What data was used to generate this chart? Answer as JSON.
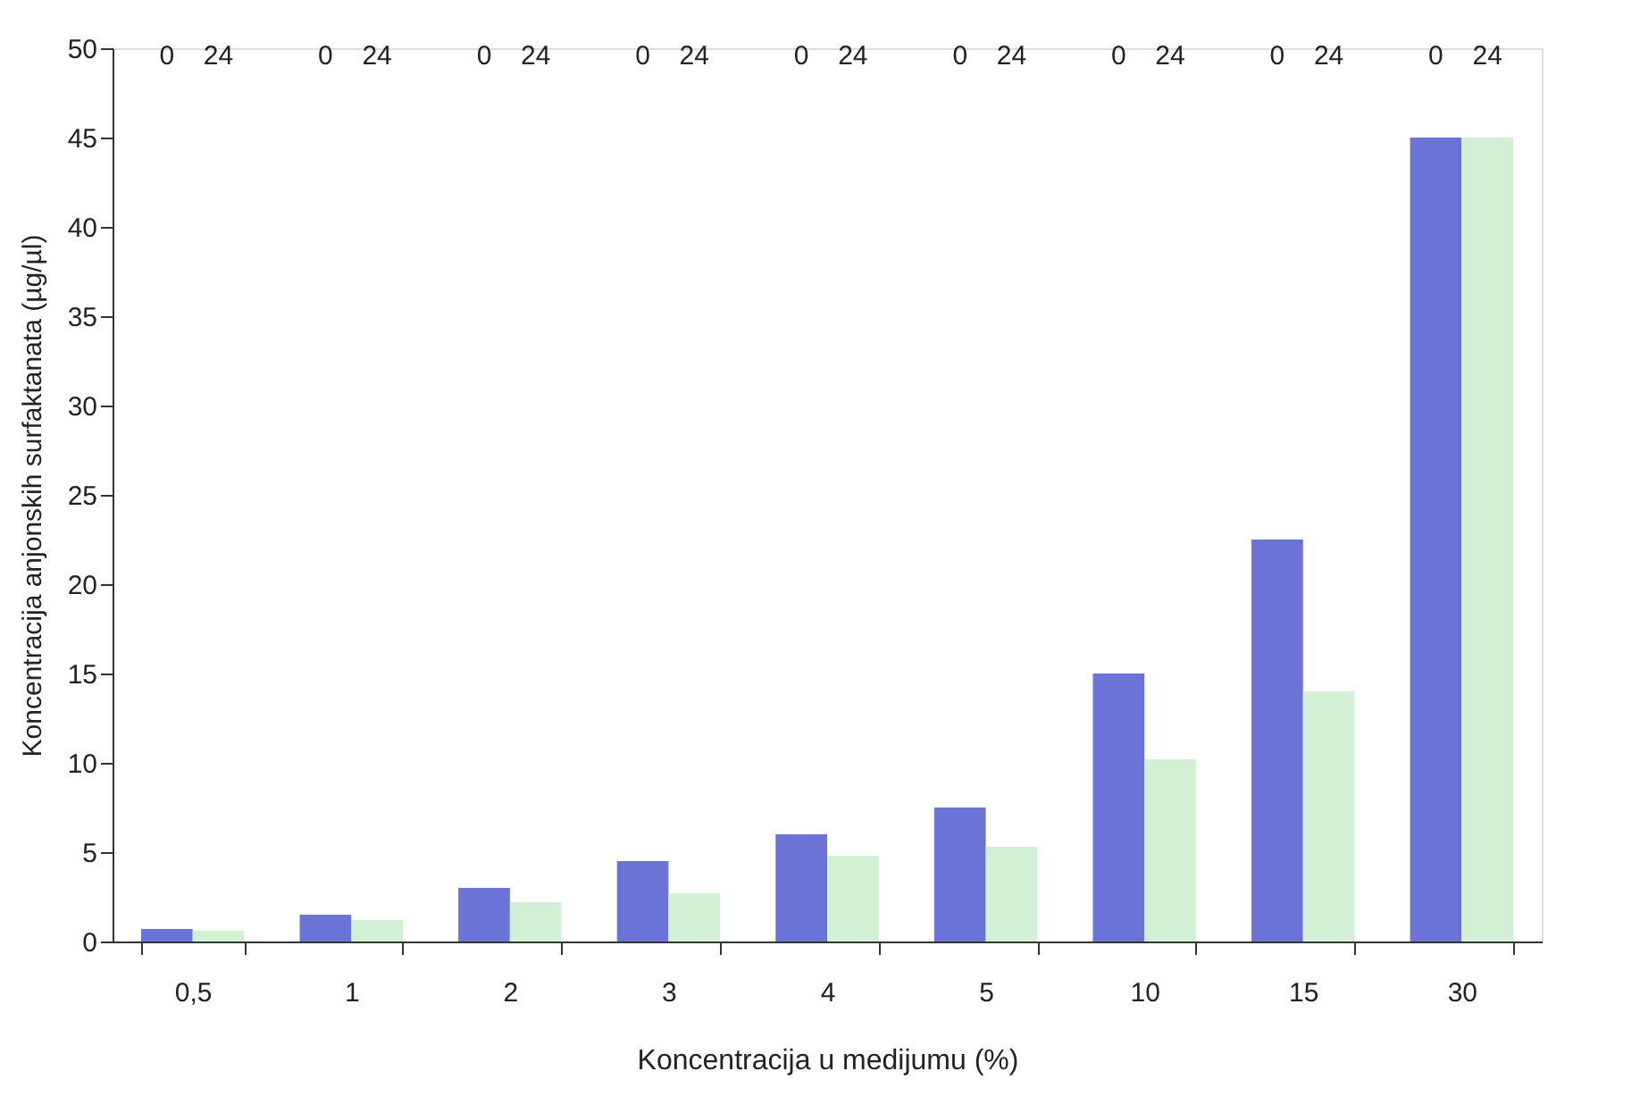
{
  "chart_data": {
    "type": "bar",
    "xlabel": "Koncentracija u medijumu (%)",
    "ylabel": "Koncentracija anjonskih surfaktanata (µg/µl)",
    "categories": [
      "0,5",
      "1",
      "2",
      "3",
      "4",
      "5",
      "10",
      "15",
      "30"
    ],
    "series": [
      {
        "name": "0",
        "color": "#6b74d6",
        "values": [
          0.7,
          1.5,
          3.0,
          4.5,
          6.0,
          7.5,
          15,
          22.5,
          45
        ]
      },
      {
        "name": "24",
        "color": "#d4f0d4",
        "values": [
          0.6,
          1.2,
          2.2,
          2.7,
          4.8,
          5.3,
          10.2,
          14,
          45
        ]
      }
    ],
    "ylim": [
      0,
      50
    ],
    "yticks": [
      0,
      5,
      10,
      15,
      20,
      25,
      30,
      35,
      40,
      45,
      50
    ],
    "grid": false
  }
}
